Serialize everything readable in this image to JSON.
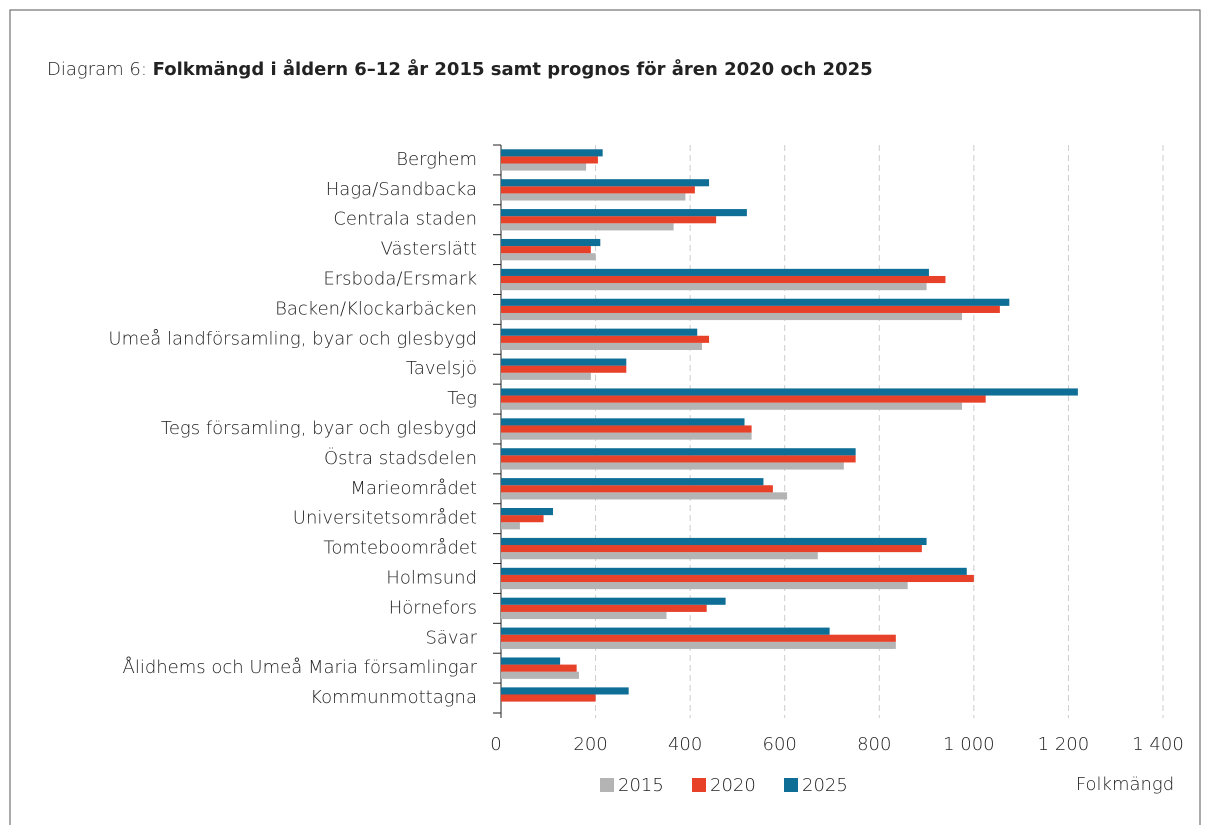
{
  "chart_data": {
    "type": "hbar",
    "title_label": "Diagram 6:",
    "title": "Folkmängd i åldern 6–12 år 2015 samt prognos för åren 2020 och 2025",
    "x_label": "Folkmängd",
    "categories": [
      "Berghem",
      "Haga/Sandbacka",
      "Centrala staden",
      "Västerslätt",
      "Ersboda/Ersmark",
      "Backen/Klockarbäcken",
      "Umeå landförsamling, byar och glesbygd",
      "Tavelsjö",
      "Teg",
      "Tegs församling, byar och glesbygd",
      "Östra stadsdelen",
      "Marieområdet",
      "Universitetsområdet",
      "Tomteboområdet",
      "Holmsund",
      "Hörnefors",
      "Sävar",
      "Ålidhems och Umeå Maria församlingar",
      "Kommunmottagna"
    ],
    "series": [
      {
        "name": "2015",
        "color": "#b4b4b4",
        "values": [
          180,
          390,
          365,
          200,
          900,
          975,
          425,
          190,
          975,
          530,
          725,
          605,
          40,
          670,
          860,
          350,
          835,
          165,
          null
        ]
      },
      {
        "name": "2020",
        "color": "#e8412a",
        "values": [
          205,
          410,
          455,
          190,
          940,
          1055,
          440,
          265,
          1025,
          530,
          750,
          575,
          90,
          890,
          1000,
          435,
          835,
          160,
          200
        ]
      },
      {
        "name": "2025",
        "color": "#0f6e96",
        "values": [
          215,
          440,
          520,
          210,
          905,
          1075,
          415,
          265,
          1220,
          515,
          750,
          555,
          110,
          900,
          985,
          475,
          695,
          125,
          270
        ]
      }
    ],
    "xlim": [
      0,
      1400
    ],
    "xticks": [
      0,
      200,
      400,
      600,
      800,
      {
        "value": 1000,
        "label": "1 000"
      },
      {
        "value": 1200,
        "label": "1 200"
      },
      {
        "value": 1400,
        "label": "1 400"
      }
    ],
    "grid": true,
    "legend": "bottom"
  }
}
